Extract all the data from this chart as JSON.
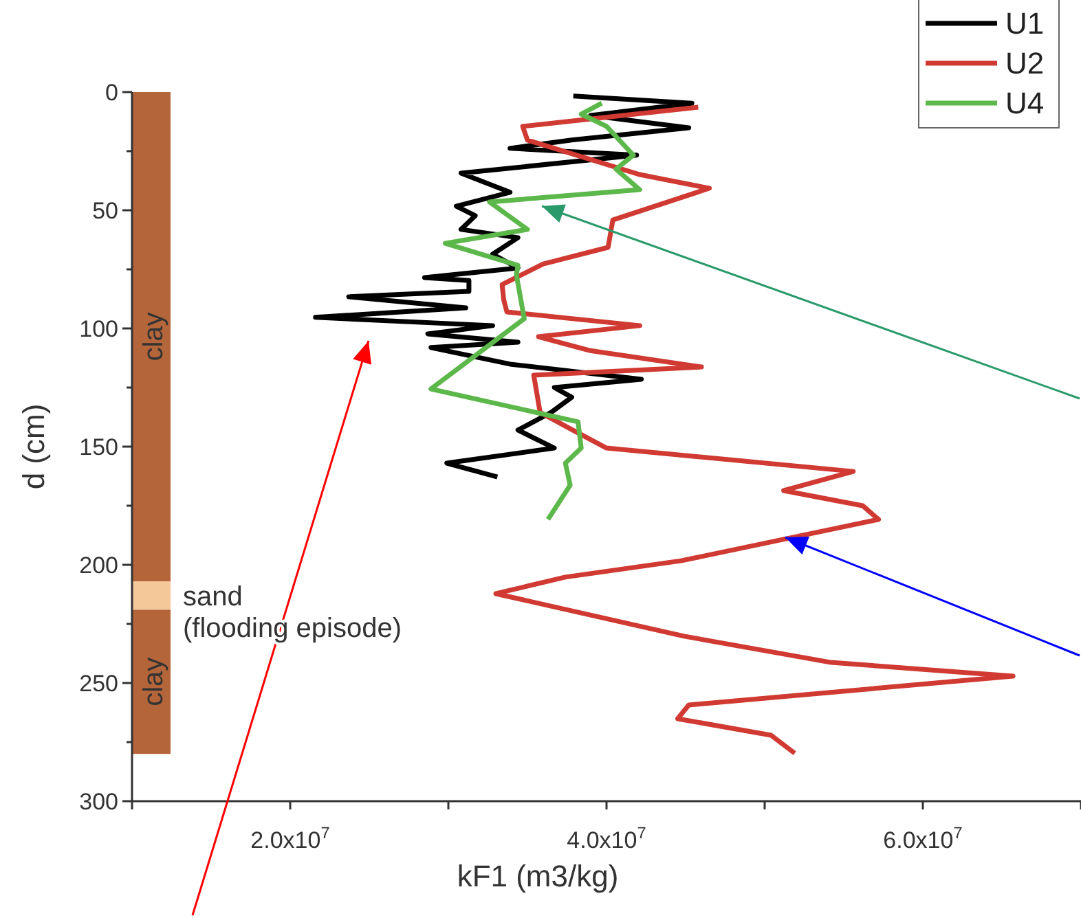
{
  "chart_data": {
    "type": "line",
    "xlabel": "kF1 (m3/kg)",
    "ylabel": "d (cm)",
    "xlim": [
      10000000.0,
      70000000.0
    ],
    "ylim": [
      300,
      0
    ],
    "xticks": [
      {
        "value": 20000000.0,
        "label": "2.0x10$^{7}$"
      },
      {
        "value": 30000000.0,
        "label": null
      },
      {
        "value": 40000000.0,
        "label": "4.0x10$^{7}$"
      },
      {
        "value": 50000000.0,
        "label": null
      },
      {
        "value": 60000000.0,
        "label": "6.0x10$^{7}$"
      }
    ],
    "yticks": [
      0,
      {
        "value": 25,
        "label": null
      },
      50,
      {
        "value": 75,
        "label": null
      },
      100,
      {
        "value": 125,
        "label": null
      },
      150,
      {
        "value": 175,
        "label": null
      },
      200,
      {
        "value": 225,
        "label": null
      },
      250,
      {
        "value": 275,
        "label": null
      },
      300
    ],
    "grid": false,
    "legend": "top right",
    "marker": "none",
    "line_style": "solid",
    "annotations": [
      "(flooding episode)"
    ],
    "bands": [
      {
        "axis": "y",
        "from": 0,
        "to": 207,
        "label": "clay",
        "color": "#b5653a"
      },
      {
        "axis": "y",
        "from": 207,
        "to": 219,
        "label": "sand",
        "color": "#f5c89a"
      },
      {
        "axis": "y",
        "from": 219,
        "to": 280,
        "label": "clay",
        "color": "#b5653a"
      }
    ],
    "series": [
      {
        "name": "U1",
        "color": "#000000",
        "x": [
          37900000.0,
          45400000.0,
          39000000.0,
          45200000.0,
          37800000.0,
          33900000.0,
          41900000.0,
          30800000.0,
          33900000.0,
          30500000.0,
          31700000.0,
          30800000.0,
          34400000.0,
          32800000.0,
          34400000.0,
          28500000.0,
          31300000.0,
          31300000.0,
          23700000.0,
          31100000.0,
          21600000.0,
          32800000.0,
          28700000.0,
          34400000.0,
          28900000.0,
          33900000.0,
          42200000.0,
          36700000.0,
          37800000.0,
          36500000.0,
          34400000.0,
          36700000.0,
          29900000.0,
          33100000.0
        ],
        "values": [
          1.7,
          4.7,
          9.9,
          15.1,
          20.3,
          23.8,
          26.7,
          34.3,
          42.4,
          48.3,
          52.3,
          58.1,
          61.6,
          68.6,
          74.4,
          78.5,
          79.7,
          84.3,
          86.6,
          91.3,
          95.3,
          98.8,
          102.3,
          105.8,
          108.1,
          115.1,
          121.5,
          125,
          129.1,
          135.5,
          143,
          150.6,
          157,
          162.8
        ]
      },
      {
        "name": "U2",
        "color": "#d03a32",
        "x": [
          45800000.0,
          34700000.0,
          35000000.0,
          42100000.0,
          46500000.0,
          40400000.0,
          40100000.0,
          36000000.0,
          33400000.0,
          33500000.0,
          33700000.0,
          42100000.0,
          35700000.0,
          38900000.0,
          46000000.0,
          35400000.0,
          35800000.0,
          37700000.0,
          40000000.0,
          55600000.0,
          51200000.0,
          56200000.0,
          57200000.0,
          44700000.0,
          37400000.0,
          33000000.0,
          44900000.0,
          54200000.0,
          65700000.0,
          45200000.0,
          44500000.0,
          50400000.0,
          51900000.0
        ],
        "values": [
          6.4,
          14.5,
          20.3,
          34.9,
          40.7,
          54.1,
          65.7,
          72.7,
          81.4,
          87.8,
          93,
          98.8,
          103.5,
          109.3,
          116.3,
          119.8,
          135.5,
          142.4,
          150.6,
          160.5,
          168.6,
          175,
          180.8,
          198.3,
          205.2,
          212.2,
          230.2,
          241.3,
          247.1,
          259.3,
          265.1,
          272.1,
          279.7
        ]
      },
      {
        "name": "U4",
        "color": "#5cb84a",
        "x": [
          39700000.0,
          38400000.0,
          40000000.0,
          41700000.0,
          40600000.0,
          42100000.0,
          32600000.0,
          35000000.0,
          29800000.0,
          34400000.0,
          34300000.0,
          34800000.0,
          28900000.0,
          38200000.0,
          38400000.0,
          37400000.0,
          37700000.0,
          36300000.0
        ],
        "values": [
          4.7,
          9.3,
          14.5,
          26.7,
          32.6,
          41.3,
          46.5,
          58.1,
          64,
          73.3,
          77.3,
          95.9,
          125.6,
          139.5,
          150.6,
          157,
          166.3,
          180.8
        ]
      }
    ]
  }
}
